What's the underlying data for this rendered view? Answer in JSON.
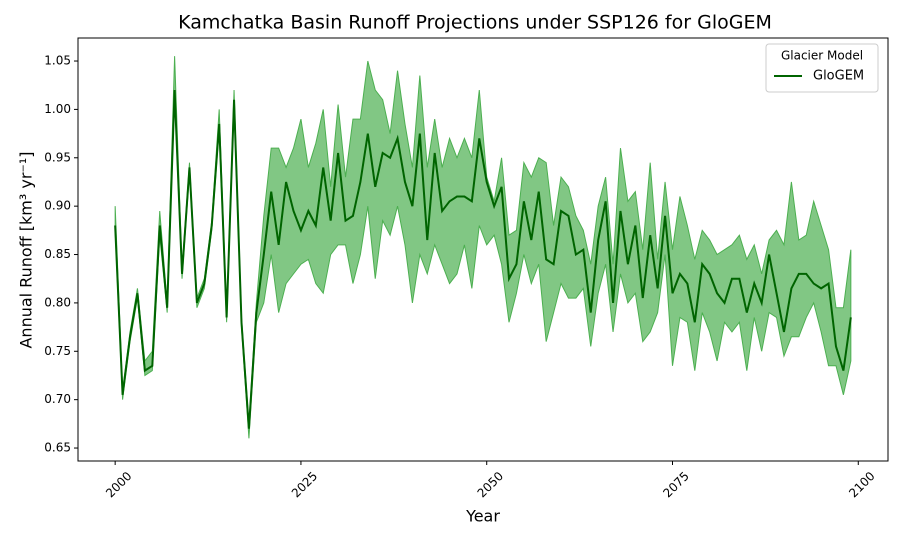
{
  "chart_data": {
    "type": "line-band",
    "title": "Kamchatka Basin Runoff Projections under SSP126 for GloGEM",
    "x_label": "Year",
    "y_label": "Annual Runoff [km³ yr⁻¹]",
    "legend_title": "Glacier Model",
    "legend_position": "upper right",
    "xlim": [
      1995,
      2104
    ],
    "ylim": [
      0.6366,
      1.0738
    ],
    "xticks": [
      2000,
      2025,
      2050,
      2075,
      2100
    ],
    "yticks": [
      0.65,
      {
        "value": 0.7,
        "label": "0.70"
      },
      0.75,
      {
        "value": 0.8,
        "label": "0.80"
      },
      0.85,
      {
        "value": 0.9,
        "label": "0.90"
      },
      0.95,
      {
        "value": 1.0,
        "label": "1.00"
      },
      1.05
    ],
    "x": [
      2000,
      2001,
      2002,
      2003,
      2004,
      2005,
      2006,
      2007,
      2008,
      2009,
      2010,
      2011,
      2012,
      2013,
      2014,
      2015,
      2016,
      2017,
      2018,
      2019,
      2020,
      2021,
      2022,
      2023,
      2024,
      2025,
      2026,
      2027,
      2028,
      2029,
      2030,
      2031,
      2032,
      2033,
      2034,
      2035,
      2036,
      2037,
      2038,
      2039,
      2040,
      2041,
      2042,
      2043,
      2044,
      2045,
      2046,
      2047,
      2048,
      2049,
      2050,
      2051,
      2052,
      2053,
      2054,
      2055,
      2056,
      2057,
      2058,
      2059,
      2060,
      2061,
      2062,
      2063,
      2064,
      2065,
      2066,
      2067,
      2068,
      2069,
      2070,
      2071,
      2072,
      2073,
      2074,
      2075,
      2076,
      2077,
      2078,
      2079,
      2080,
      2081,
      2082,
      2083,
      2084,
      2085,
      2086,
      2087,
      2088,
      2089,
      2090,
      2091,
      2092,
      2093,
      2094,
      2095,
      2096,
      2097,
      2098,
      2099
    ],
    "series": [
      {
        "name": "GloGEM",
        "color": "#006400",
        "band_color": "#4caf50",
        "values": [
          0.88,
          0.705,
          0.765,
          0.81,
          0.73,
          0.735,
          0.88,
          0.795,
          1.02,
          0.83,
          0.94,
          0.8,
          0.82,
          0.88,
          0.985,
          0.785,
          1.01,
          0.78,
          0.67,
          0.79,
          0.85,
          0.915,
          0.86,
          0.925,
          0.895,
          0.875,
          0.895,
          0.88,
          0.94,
          0.885,
          0.955,
          0.885,
          0.89,
          0.925,
          0.975,
          0.92,
          0.955,
          0.95,
          0.97,
          0.925,
          0.9,
          0.975,
          0.865,
          0.955,
          0.895,
          0.905,
          0.91,
          0.91,
          0.905,
          0.97,
          0.925,
          0.9,
          0.92,
          0.825,
          0.84,
          0.905,
          0.865,
          0.915,
          0.845,
          0.84,
          0.895,
          0.89,
          0.85,
          0.855,
          0.79,
          0.865,
          0.905,
          0.8,
          0.895,
          0.84,
          0.88,
          0.805,
          0.87,
          0.815,
          0.89,
          0.81,
          0.83,
          0.82,
          0.78,
          0.84,
          0.83,
          0.81,
          0.8,
          0.825,
          0.825,
          0.79,
          0.82,
          0.8,
          0.85,
          0.81,
          0.77,
          0.815,
          0.83,
          0.83,
          0.82,
          0.815,
          0.82,
          0.755,
          0.73,
          0.785
        ],
        "lower": [
          0.875,
          0.7,
          0.76,
          0.805,
          0.725,
          0.73,
          0.87,
          0.79,
          1.015,
          0.825,
          0.935,
          0.795,
          0.815,
          0.875,
          0.98,
          0.78,
          1.005,
          0.775,
          0.66,
          0.78,
          0.8,
          0.85,
          0.79,
          0.82,
          0.83,
          0.84,
          0.845,
          0.82,
          0.81,
          0.85,
          0.86,
          0.86,
          0.82,
          0.85,
          0.9,
          0.825,
          0.885,
          0.87,
          0.9,
          0.86,
          0.8,
          0.85,
          0.83,
          0.86,
          0.84,
          0.82,
          0.83,
          0.86,
          0.815,
          0.88,
          0.86,
          0.87,
          0.84,
          0.78,
          0.81,
          0.85,
          0.82,
          0.84,
          0.76,
          0.79,
          0.82,
          0.805,
          0.805,
          0.815,
          0.755,
          0.81,
          0.84,
          0.77,
          0.83,
          0.8,
          0.81,
          0.76,
          0.77,
          0.79,
          0.85,
          0.735,
          0.785,
          0.78,
          0.73,
          0.79,
          0.77,
          0.74,
          0.78,
          0.77,
          0.78,
          0.73,
          0.785,
          0.75,
          0.79,
          0.785,
          0.745,
          0.765,
          0.765,
          0.785,
          0.8,
          0.77,
          0.735,
          0.735,
          0.705,
          0.74
        ],
        "upper": [
          0.9,
          0.71,
          0.77,
          0.815,
          0.74,
          0.75,
          0.895,
          0.8,
          1.055,
          0.835,
          0.945,
          0.805,
          0.825,
          0.885,
          1.0,
          0.79,
          1.02,
          0.785,
          0.675,
          0.8,
          0.89,
          0.96,
          0.96,
          0.94,
          0.96,
          0.99,
          0.94,
          0.965,
          1.0,
          0.92,
          1.005,
          0.93,
          0.99,
          0.99,
          1.05,
          1.02,
          1.01,
          0.975,
          1.04,
          0.985,
          0.94,
          1.035,
          0.94,
          0.99,
          0.94,
          0.97,
          0.95,
          0.97,
          0.95,
          1.02,
          0.93,
          0.905,
          0.95,
          0.87,
          0.875,
          0.945,
          0.93,
          0.95,
          0.945,
          0.88,
          0.93,
          0.92,
          0.89,
          0.875,
          0.84,
          0.9,
          0.93,
          0.84,
          0.96,
          0.905,
          0.915,
          0.855,
          0.945,
          0.845,
          0.925,
          0.855,
          0.91,
          0.88,
          0.845,
          0.875,
          0.865,
          0.85,
          0.855,
          0.86,
          0.87,
          0.845,
          0.86,
          0.83,
          0.865,
          0.875,
          0.86,
          0.925,
          0.865,
          0.87,
          0.905,
          0.88,
          0.855,
          0.795,
          0.795,
          0.855
        ]
      }
    ]
  }
}
